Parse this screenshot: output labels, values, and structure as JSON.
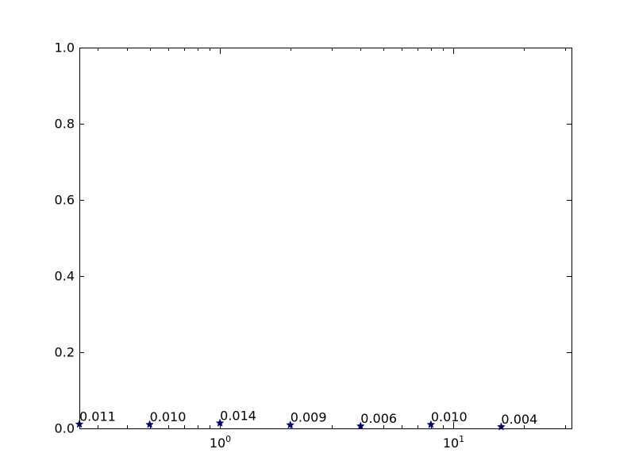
{
  "chart_data": {
    "type": "scatter",
    "title": "",
    "xlabel": "",
    "ylabel": "",
    "xscale": "log",
    "xlim": [
      0.25,
      32
    ],
    "ylim": [
      0,
      1.0
    ],
    "grid": false,
    "legend": "none",
    "x_major_ticks": [
      {
        "value": 1,
        "label": "10⁰"
      },
      {
        "value": 10,
        "label": "10¹"
      }
    ],
    "x_minor_ticks": [
      0.3,
      0.4,
      0.5,
      0.6,
      0.7,
      0.8,
      0.9,
      2,
      3,
      4,
      5,
      6,
      7,
      8,
      9,
      20,
      30
    ],
    "y_ticks": [
      {
        "value": 0.0,
        "label": "0.0"
      },
      {
        "value": 0.2,
        "label": "0.2"
      },
      {
        "value": 0.4,
        "label": "0.4"
      },
      {
        "value": 0.6,
        "label": "0.6"
      },
      {
        "value": 0.8,
        "label": "0.8"
      },
      {
        "value": 1.0,
        "label": "1.0"
      }
    ],
    "marker": "star",
    "marker_color": "#00007f",
    "series": [
      {
        "points": [
          {
            "x": 0.25,
            "y": 0.011,
            "label": "0.011"
          },
          {
            "x": 0.5,
            "y": 0.01,
            "label": "0.010"
          },
          {
            "x": 1,
            "y": 0.014,
            "label": "0.014"
          },
          {
            "x": 2,
            "y": 0.009,
            "label": "0.009"
          },
          {
            "x": 4,
            "y": 0.006,
            "label": "0.006"
          },
          {
            "x": 8,
            "y": 0.01,
            "label": "0.010"
          },
          {
            "x": 16,
            "y": 0.004,
            "label": "0.004"
          }
        ]
      }
    ]
  }
}
